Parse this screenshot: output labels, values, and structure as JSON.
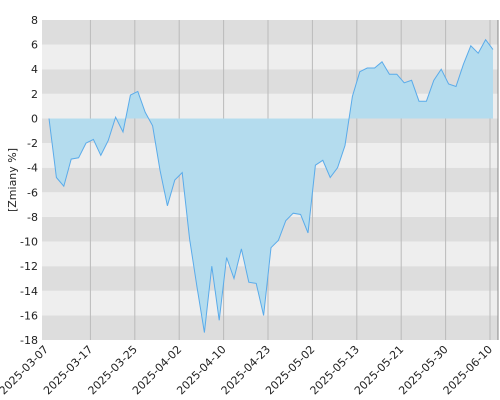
{
  "chart_data": {
    "type": "area",
    "y_label": "[Zmiany %]",
    "categories": [
      "2025-03-07",
      null,
      null,
      null,
      null,
      null,
      "2025-03-17",
      null,
      null,
      null,
      null,
      null,
      "2025-03-25",
      null,
      null,
      null,
      null,
      null,
      "2025-04-02",
      null,
      null,
      null,
      null,
      null,
      "2025-04-10",
      null,
      null,
      null,
      null,
      null,
      "2025-04-23",
      null,
      null,
      null,
      null,
      null,
      "2025-05-02",
      null,
      null,
      null,
      null,
      null,
      "2025-05-13",
      null,
      null,
      null,
      null,
      null,
      "2025-05-21",
      null,
      null,
      null,
      null,
      null,
      "2025-05-30",
      null,
      null,
      null,
      null,
      null,
      "2025-06-10"
    ],
    "values": [
      0,
      -4.8,
      -5.5,
      -3.3,
      -3.2,
      -2.0,
      -1.7,
      -3.0,
      -1.8,
      0.1,
      -1.1,
      1.9,
      2.2,
      0.5,
      -0.6,
      -4.2,
      -7.1,
      -5.0,
      -4.4,
      -9.8,
      -13.7,
      -17.4,
      -12.0,
      -16.4,
      -11.3,
      -13.0,
      -10.6,
      -13.3,
      -13.4,
      -16.0,
      -10.5,
      -9.9,
      -8.3,
      -7.7,
      -7.8,
      -9.3,
      -3.8,
      -3.4,
      -4.8,
      -4.0,
      -2.2,
      1.8,
      3.8,
      4.1,
      4.1,
      4.6,
      3.6,
      3.6,
      2.9,
      3.1,
      1.4,
      1.4,
      3.1,
      4.0,
      2.8,
      2.6,
      4.4,
      5.9,
      5.3,
      6.4,
      5.6
    ],
    "color": "#5aabea",
    "fill_color": "#b4dcee",
    "ylim": [
      -18,
      8
    ],
    "yticks": [
      -18,
      -16,
      -14,
      -12,
      -10,
      -8,
      -6,
      -4,
      -2,
      0,
      2,
      4,
      6,
      8
    ],
    "grid": true
  }
}
